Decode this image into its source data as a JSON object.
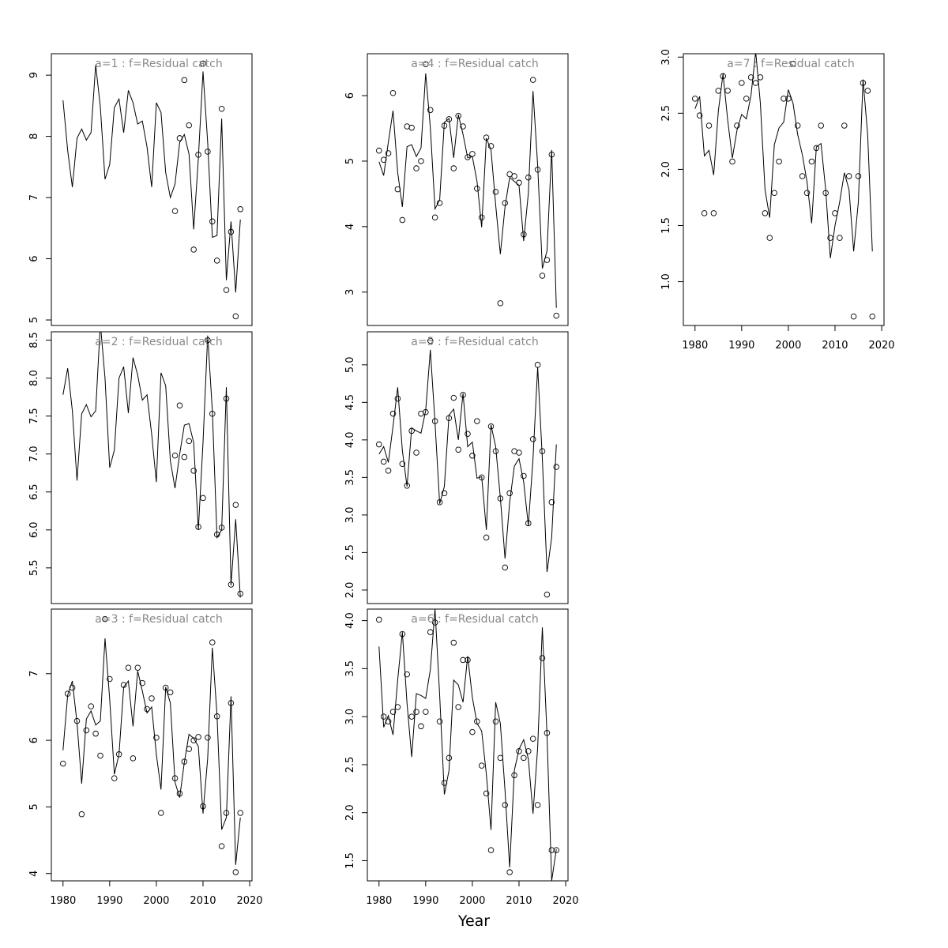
{
  "xlabel": "Year",
  "chart_data": [
    {
      "type": "line",
      "title": "a=1  :  f=Residual catch",
      "x": [
        1980,
        1981,
        1982,
        1983,
        1984,
        1985,
        1986,
        1987,
        1988,
        1989,
        1990,
        1991,
        1992,
        1993,
        1994,
        1995,
        1996,
        1997,
        1998,
        1999,
        2000,
        2001,
        2002,
        2003,
        2004,
        2005,
        2006,
        2007,
        2008,
        2009,
        2010,
        2011,
        2012,
        2013,
        2014,
        2015,
        2016,
        2017,
        2018
      ],
      "xlim": [
        1977.5,
        2020.5
      ],
      "ylim": [
        4.91,
        9.35
      ],
      "yticks": [
        5,
        6,
        7,
        8,
        9
      ],
      "series": [
        {
          "style": "line",
          "color": "#000000",
          "values": [
            8.59,
            7.77,
            7.17,
            7.97,
            8.12,
            7.94,
            8.06,
            9.17,
            8.48,
            7.3,
            7.54,
            8.47,
            8.61,
            8.06,
            8.75,
            8.55,
            8.2,
            8.25,
            7.83,
            7.17,
            8.55,
            8.39,
            7.41,
            7.0,
            7.22,
            7.9,
            8.03,
            7.71,
            6.48,
            7.64,
            9.06,
            7.9,
            6.35,
            6.38,
            8.29,
            5.65,
            6.61,
            5.45,
            6.64
          ]
        },
        {
          "style": "points",
          "color": "#000000",
          "values": [
            null,
            null,
            null,
            null,
            null,
            null,
            null,
            null,
            null,
            null,
            null,
            null,
            null,
            null,
            null,
            null,
            null,
            null,
            null,
            null,
            null,
            null,
            null,
            null,
            6.78,
            7.97,
            8.92,
            8.18,
            6.15,
            7.7,
            9.19,
            7.75,
            6.61,
            5.97,
            8.45,
            5.49,
            6.44,
            5.06,
            6.81
          ]
        }
      ]
    },
    {
      "type": "line",
      "title": "a=2  :  f=Residual catch",
      "x": [
        1980,
        1981,
        1982,
        1983,
        1984,
        1985,
        1986,
        1987,
        1988,
        1989,
        1990,
        1991,
        1992,
        1993,
        1994,
        1995,
        1996,
        1997,
        1998,
        1999,
        2000,
        2001,
        2002,
        2003,
        2004,
        2005,
        2006,
        2007,
        2008,
        2009,
        2010,
        2011,
        2012,
        2013,
        2014,
        2015,
        2016,
        2017,
        2018
      ],
      "xlim": [
        1977.5,
        2020.5
      ],
      "ylim": [
        5.03,
        8.61
      ],
      "yticks": [
        5.5,
        {
          "value": 6,
          "label": "6.0"
        },
        6.5,
        {
          "value": 7,
          "label": "7.0"
        },
        7.5,
        {
          "value": 8,
          "label": "8.0"
        },
        8.5
      ],
      "series": [
        {
          "style": "line",
          "color": "#000000",
          "values": [
            7.78,
            8.13,
            7.57,
            6.65,
            7.53,
            7.65,
            7.49,
            7.57,
            8.72,
            8.0,
            6.82,
            7.05,
            8.0,
            8.15,
            7.54,
            8.27,
            8.04,
            7.71,
            7.78,
            7.26,
            6.63,
            8.07,
            7.9,
            6.91,
            6.55,
            7.0,
            7.38,
            7.4,
            7.15,
            6.0,
            7.15,
            8.56,
            7.57,
            5.9,
            6.0,
            7.88,
            5.27,
            6.14,
            5.11
          ]
        },
        {
          "style": "points",
          "color": "#000000",
          "values": [
            null,
            null,
            null,
            null,
            null,
            null,
            null,
            null,
            null,
            null,
            null,
            null,
            null,
            null,
            null,
            null,
            null,
            null,
            null,
            null,
            null,
            null,
            null,
            null,
            6.98,
            7.64,
            6.96,
            7.17,
            6.78,
            6.04,
            6.42,
            8.5,
            7.53,
            5.94,
            6.03,
            7.73,
            5.28,
            6.33,
            5.16
          ]
        }
      ]
    },
    {
      "type": "line",
      "title": "a=3  :  f=Residual catch",
      "x": [
        1980,
        1981,
        1982,
        1983,
        1984,
        1985,
        1986,
        1987,
        1988,
        1989,
        1990,
        1991,
        1992,
        1993,
        1994,
        1995,
        1996,
        1997,
        1998,
        1999,
        2000,
        2001,
        2002,
        2003,
        2004,
        2005,
        2006,
        2007,
        2008,
        2009,
        2010,
        2011,
        2012,
        2013,
        2014,
        2015,
        2016,
        2017,
        2018
      ],
      "xlim": [
        1977.5,
        2020.5
      ],
      "ylim": [
        3.89,
        7.97
      ],
      "yticks": [
        4,
        5,
        6,
        7
      ],
      "xticks": [
        1980,
        1990,
        2000,
        2010,
        2020
      ],
      "series": [
        {
          "style": "line",
          "color": "#000000",
          "values": [
            5.85,
            6.68,
            6.89,
            6.26,
            5.35,
            6.32,
            6.44,
            6.23,
            6.29,
            7.53,
            6.62,
            5.49,
            5.79,
            6.8,
            6.89,
            6.21,
            7.04,
            6.74,
            6.41,
            6.5,
            5.79,
            5.26,
            6.8,
            6.56,
            5.37,
            5.14,
            5.67,
            6.09,
            6.03,
            5.91,
            4.9,
            5.73,
            7.39,
            6.38,
            4.66,
            4.84,
            6.66,
            4.13,
            4.84
          ]
        },
        {
          "style": "points",
          "color": "#000000",
          "values": [
            5.65,
            6.7,
            6.79,
            6.29,
            4.89,
            6.15,
            6.51,
            6.1,
            5.77,
            7.82,
            6.92,
            5.43,
            5.79,
            6.83,
            7.09,
            5.73,
            7.09,
            6.86,
            6.47,
            6.63,
            6.04,
            4.91,
            6.79,
            6.72,
            5.43,
            5.2,
            5.68,
            5.87,
            6.0,
            6.05,
            5.01,
            6.04,
            7.47,
            6.36,
            4.41,
            4.91,
            6.56,
            4.02,
            4.91
          ]
        }
      ]
    },
    {
      "type": "line",
      "title": "a=4  :  f=Residual catch",
      "x": [
        1980,
        1981,
        1982,
        1983,
        1984,
        1985,
        1986,
        1987,
        1988,
        1989,
        1990,
        1991,
        1992,
        1993,
        1994,
        1995,
        1996,
        1997,
        1998,
        1999,
        2000,
        2001,
        2002,
        2003,
        2004,
        2005,
        2006,
        2007,
        2008,
        2009,
        2010,
        2011,
        2012,
        2013,
        2014,
        2015,
        2016,
        2017,
        2018
      ],
      "xlim": [
        1977.5,
        2020.5
      ],
      "ylim": [
        2.49,
        6.64
      ],
      "yticks": [
        3,
        4,
        5,
        6
      ],
      "series": [
        {
          "style": "line",
          "color": "#000000",
          "values": [
            4.99,
            4.78,
            5.29,
            5.77,
            4.83,
            4.3,
            5.22,
            5.25,
            5.07,
            5.2,
            6.34,
            5.51,
            4.27,
            4.41,
            5.59,
            5.65,
            5.05,
            5.71,
            5.41,
            5.05,
            5.07,
            4.69,
            3.99,
            5.35,
            5.17,
            4.33,
            3.58,
            4.3,
            4.75,
            4.69,
            4.63,
            3.78,
            4.51,
            6.07,
            4.93,
            3.36,
            3.63,
            5.17,
            2.76
          ]
        },
        {
          "style": "points",
          "color": "#000000",
          "values": [
            5.16,
            5.02,
            5.12,
            6.04,
            4.57,
            4.1,
            5.53,
            5.51,
            4.89,
            5.0,
            6.48,
            5.78,
            4.14,
            4.36,
            5.54,
            5.64,
            4.89,
            5.69,
            5.53,
            5.06,
            5.11,
            4.58,
            4.14,
            5.36,
            5.23,
            4.53,
            2.83,
            4.36,
            4.8,
            4.77,
            4.67,
            3.88,
            4.75,
            6.24,
            4.87,
            3.25,
            3.49,
            5.1,
            2.64
          ]
        }
      ]
    },
    {
      "type": "line",
      "title": "a=5  :  f=Residual catch",
      "x": [
        1980,
        1981,
        1982,
        1983,
        1984,
        1985,
        1986,
        1987,
        1988,
        1989,
        1990,
        1991,
        1992,
        1993,
        1994,
        1995,
        1996,
        1997,
        1998,
        1999,
        2000,
        2001,
        2002,
        2003,
        2004,
        2005,
        2006,
        2007,
        2008,
        2009,
        2010,
        2011,
        2012,
        2013,
        2014,
        2015,
        2016,
        2017,
        2018
      ],
      "xlim": [
        1977.5,
        2020.5
      ],
      "ylim": [
        1.82,
        5.44
      ],
      "yticks": [
        {
          "value": 2,
          "label": "2.0"
        },
        2.5,
        {
          "value": 3,
          "label": "3.0"
        },
        3.5,
        {
          "value": 4,
          "label": "4.0"
        },
        4.5,
        {
          "value": 5,
          "label": "5.0"
        }
      ],
      "series": [
        {
          "style": "line",
          "color": "#000000",
          "values": [
            3.81,
            3.91,
            3.7,
            4.18,
            4.7,
            3.86,
            3.38,
            4.16,
            4.12,
            4.09,
            4.39,
            5.2,
            4.23,
            3.15,
            3.38,
            4.33,
            4.41,
            4.0,
            4.62,
            3.91,
            3.97,
            3.49,
            3.51,
            2.8,
            4.2,
            3.91,
            3.23,
            2.42,
            3.17,
            3.65,
            3.75,
            3.44,
            2.86,
            3.75,
            4.97,
            3.75,
            2.24,
            2.7,
            3.94
          ]
        },
        {
          "style": "points",
          "color": "#000000",
          "values": [
            3.94,
            3.71,
            3.59,
            4.35,
            4.55,
            3.68,
            3.39,
            4.12,
            3.83,
            4.35,
            4.37,
            5.32,
            4.25,
            3.17,
            3.29,
            4.29,
            4.56,
            3.87,
            4.6,
            4.08,
            3.79,
            4.25,
            3.5,
            2.7,
            4.18,
            3.85,
            3.22,
            2.3,
            3.29,
            3.85,
            3.83,
            3.52,
            2.89,
            4.01,
            5.0,
            3.85,
            1.94,
            3.17,
            3.64
          ]
        }
      ]
    },
    {
      "type": "line",
      "title": "a=6  :  f=Residual catch",
      "x": [
        1980,
        1981,
        1982,
        1983,
        1984,
        1985,
        1986,
        1987,
        1988,
        1989,
        1990,
        1991,
        1992,
        1993,
        1994,
        1995,
        1996,
        1997,
        1998,
        1999,
        2000,
        2001,
        2002,
        2003,
        2004,
        2005,
        2006,
        2007,
        2008,
        2009,
        2010,
        2011,
        2012,
        2013,
        2014,
        2015,
        2016,
        2017,
        2018
      ],
      "xlim": [
        1977.5,
        2020.5
      ],
      "ylim": [
        1.29,
        4.12
      ],
      "xticks": [
        1980,
        1990,
        2000,
        2010,
        2020
      ],
      "yticks": [
        1.5,
        {
          "value": 2,
          "label": "2.0"
        },
        2.5,
        {
          "value": 3,
          "label": "3.0"
        },
        3.5,
        {
          "value": 4,
          "label": "4.0"
        }
      ],
      "series": [
        {
          "style": "line",
          "color": "#000000",
          "values": [
            3.73,
            2.89,
            3.01,
            2.81,
            3.38,
            3.88,
            3.14,
            2.58,
            3.24,
            3.22,
            3.19,
            3.49,
            4.12,
            3.22,
            2.19,
            2.44,
            3.38,
            3.33,
            3.15,
            3.63,
            3.2,
            2.93,
            2.85,
            2.4,
            1.82,
            3.15,
            2.93,
            2.23,
            1.43,
            2.44,
            2.66,
            2.76,
            2.56,
            1.99,
            2.68,
            3.93,
            2.81,
            1.29,
            1.62
          ]
        },
        {
          "style": "points",
          "color": "#000000",
          "values": [
            4.01,
            3.0,
            2.95,
            3.05,
            3.1,
            3.86,
            3.44,
            3.0,
            3.05,
            2.9,
            3.05,
            3.88,
            3.98,
            2.95,
            2.31,
            2.57,
            3.77,
            3.1,
            3.59,
            3.59,
            2.84,
            2.95,
            2.49,
            2.2,
            1.61,
            2.95,
            2.57,
            2.08,
            1.38,
            2.39,
            2.64,
            2.57,
            2.64,
            2.77,
            2.08,
            3.61,
            2.83,
            1.61,
            1.61
          ]
        }
      ]
    },
    {
      "type": "line",
      "title": "a=7  :  f=Residual catch",
      "x": [
        1980,
        1981,
        1982,
        1983,
        1984,
        1985,
        1986,
        1987,
        1988,
        1989,
        1990,
        1991,
        1992,
        1993,
        1994,
        1995,
        1996,
        1997,
        1998,
        1999,
        2000,
        2001,
        2002,
        2003,
        2004,
        2005,
        2006,
        2007,
        2008,
        2009,
        2010,
        2011,
        2012,
        2013,
        2014,
        2015,
        2016,
        2017,
        2018
      ],
      "xlim": [
        1977.5,
        2020.5
      ],
      "ylim": [
        0.61,
        3.03
      ],
      "xticks": [
        1980,
        1990,
        2000,
        2010,
        2020
      ],
      "yticks": [
        {
          "value": 1,
          "label": "1.0"
        },
        1.5,
        {
          "value": 2,
          "label": "2.0"
        },
        2.5,
        {
          "value": 3,
          "label": "3.0"
        }
      ],
      "series": [
        {
          "style": "line",
          "color": "#000000",
          "values": [
            2.54,
            2.65,
            2.12,
            2.17,
            1.95,
            2.52,
            2.85,
            2.44,
            2.1,
            2.35,
            2.49,
            2.45,
            2.66,
            3.05,
            2.59,
            1.82,
            1.57,
            2.22,
            2.37,
            2.42,
            2.71,
            2.59,
            2.31,
            2.13,
            1.89,
            1.52,
            2.2,
            2.23,
            1.82,
            1.21,
            1.5,
            1.71,
            1.97,
            1.82,
            1.27,
            1.71,
            2.8,
            2.31,
            1.27
          ]
        },
        {
          "style": "points",
          "color": "#000000",
          "values": [
            2.63,
            2.48,
            1.61,
            2.39,
            1.61,
            2.7,
            2.83,
            2.7,
            2.07,
            2.39,
            2.77,
            2.63,
            2.82,
            2.77,
            2.82,
            1.61,
            1.39,
            1.79,
            2.07,
            2.63,
            2.63,
            2.94,
            2.39,
            1.94,
            1.79,
            2.07,
            2.19,
            2.39,
            1.79,
            1.39,
            1.61,
            1.39,
            2.39,
            1.94,
            0.69,
            1.94,
            2.77,
            2.7,
            0.69
          ]
        }
      ]
    }
  ]
}
